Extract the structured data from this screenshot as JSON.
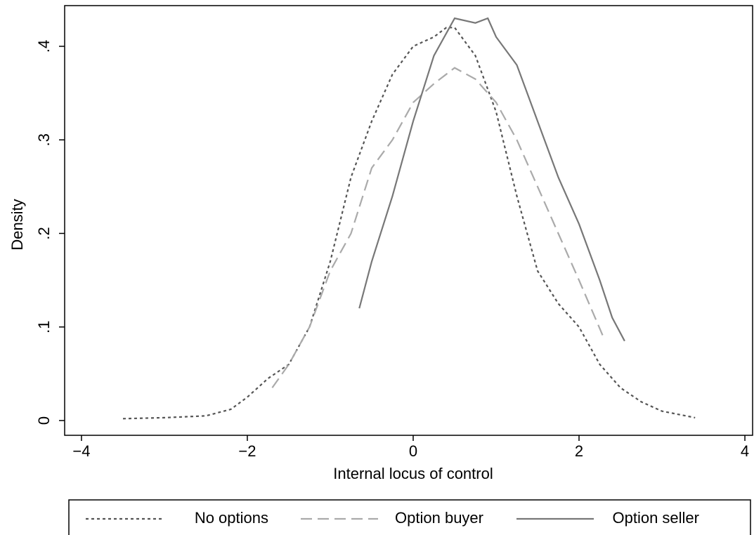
{
  "chart_data": {
    "type": "line",
    "xlabel": "Internal locus of control",
    "ylabel": "Density",
    "xlim": [
      -4.203,
      4.093
    ],
    "ylim": [
      -0.0158,
      0.4435
    ],
    "xticks": [
      {
        "value": -4,
        "label": "−4"
      },
      {
        "value": -2,
        "label": "−2"
      },
      0,
      2,
      4
    ],
    "yticks": [
      0,
      {
        "value": 0.1,
        "label": ".1"
      },
      {
        "value": 0.2,
        "label": ".2"
      },
      {
        "value": 0.3,
        "label": ".3"
      },
      {
        "value": 0.4,
        "label": ".4"
      }
    ],
    "legend": "bottom",
    "series": [
      {
        "name": "No options",
        "color": "#555555",
        "style": "dotted",
        "x": [
          -3.5,
          -3,
          -2.5,
          -2.2,
          -2,
          -1.75,
          -1.5,
          -1.25,
          -1,
          -0.75,
          -0.5,
          -0.25,
          0,
          0.25,
          0.4,
          0.5,
          0.75,
          1,
          1.25,
          1.5,
          1.75,
          2,
          2.25,
          2.5,
          2.75,
          3,
          3.4
        ],
        "values": [
          0.002,
          0.003,
          0.005,
          0.012,
          0.025,
          0.045,
          0.06,
          0.1,
          0.17,
          0.26,
          0.32,
          0.37,
          0.4,
          0.41,
          0.42,
          0.42,
          0.39,
          0.33,
          0.24,
          0.16,
          0.125,
          0.1,
          0.06,
          0.035,
          0.02,
          0.01,
          0.003
        ]
      },
      {
        "name": "Option buyer",
        "color": "#aaaaaa",
        "style": "dashed",
        "x": [
          -1.7,
          -1.5,
          -1.25,
          -1,
          -0.75,
          -0.5,
          -0.25,
          0,
          0.25,
          0.5,
          0.75,
          1,
          1.25,
          1.5,
          1.75,
          2,
          2.3
        ],
        "values": [
          0.035,
          0.06,
          0.1,
          0.16,
          0.2,
          0.27,
          0.3,
          0.34,
          0.36,
          0.377,
          0.365,
          0.34,
          0.3,
          0.25,
          0.2,
          0.15,
          0.088
        ]
      },
      {
        "name": "Option seller",
        "color": "#777777",
        "style": "solid",
        "x": [
          -0.65,
          -0.5,
          -0.25,
          0,
          0.25,
          0.5,
          0.75,
          0.9,
          1,
          1.25,
          1.5,
          1.75,
          2,
          2.25,
          2.4,
          2.55
        ],
        "values": [
          0.12,
          0.17,
          0.24,
          0.32,
          0.39,
          0.43,
          0.425,
          0.43,
          0.41,
          0.38,
          0.32,
          0.26,
          0.21,
          0.15,
          0.11,
          0.085
        ]
      }
    ]
  }
}
